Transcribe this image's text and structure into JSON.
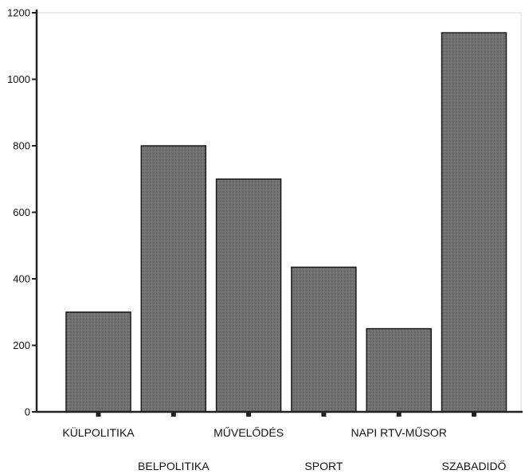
{
  "chart_data": {
    "type": "bar",
    "categories": [
      "KÜLPOLITIKA",
      "BELPOLITIKA",
      "MŰVELŐDÉS",
      "SPORT",
      "NAPI RTV-MŰSOR",
      "SZABADIDŐ"
    ],
    "values": [
      300,
      800,
      700,
      435,
      250,
      1140
    ],
    "title": "",
    "xlabel": "",
    "ylabel": "",
    "ylim": [
      0,
      1200
    ],
    "yticks": [
      0,
      200,
      400,
      600,
      800,
      1000,
      1200
    ],
    "grid": false,
    "legend": "none",
    "colors": {
      "bar_fill": "#6e6e6e",
      "bar_stroke": "#1a1a1a",
      "axis": "#222222",
      "background": "#ffffff"
    }
  }
}
